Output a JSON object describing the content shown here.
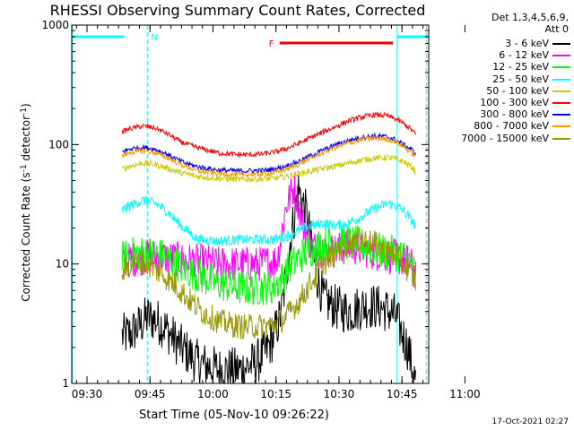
{
  "chart_data": {
    "type": "line",
    "title": "RHESSI Observing Summary Count Rates, Corrected",
    "xlabel": "Start Time (05-Nov-10 09:26:22)",
    "ylabel": "Corrected Count Rate (s",
    "ylabel_sup1": "-1",
    "ylabel_mid": " detector",
    "ylabel_sup2": "-1",
    "ylabel_end": ")",
    "y_scale": "log",
    "ylim": [
      1,
      1000
    ],
    "y_ticks": [
      "1",
      "10",
      "100",
      "1000"
    ],
    "xlim_minutes": [
      0,
      85
    ],
    "x_ticks": [
      {
        "label": "09:30",
        "minute": 3.63
      },
      {
        "label": "09:45",
        "minute": 18.63
      },
      {
        "label": "10:00",
        "minute": 33.63
      },
      {
        "label": "10:15",
        "minute": 48.63
      },
      {
        "label": "10:30",
        "minute": 63.63
      },
      {
        "label": "10:45",
        "minute": 78.63
      },
      {
        "label": "11:00",
        "minute": 93.63
      }
    ],
    "detectors": "Det 1,3,4,5,6,9,",
    "attenuator": "Att 0",
    "timestamp": "17-Oct-2021 02:27",
    "annotations": [
      {
        "label": "N",
        "color": "#00ffff",
        "x_minute": 18.0
      },
      {
        "label": "F",
        "color": "#ee0000",
        "x_start": 49.5,
        "x_end": 76.5
      }
    ],
    "series": [
      {
        "name": "3 - 6 keV",
        "color": "#000000",
        "x": [
          12,
          14,
          16,
          18,
          20,
          22,
          25,
          30,
          35,
          40,
          44,
          46,
          48,
          50,
          52,
          54,
          56,
          58,
          60,
          63,
          66,
          70,
          74,
          77,
          78,
          80,
          82
        ],
        "y": [
          2.5,
          2.6,
          3.0,
          3.6,
          3.4,
          3.0,
          2.2,
          1.5,
          1.3,
          1.3,
          1.5,
          1.8,
          2.4,
          4.0,
          15,
          42,
          25,
          9,
          5.0,
          4.3,
          4.0,
          4.5,
          4.3,
          3.7,
          3.0,
          2.0,
          1.0
        ]
      },
      {
        "name": "6 - 12 keV",
        "color": "#ff00ff",
        "x": [
          12,
          15,
          18,
          21,
          25,
          30,
          35,
          40,
          45,
          48,
          49,
          51,
          53,
          55,
          57,
          60,
          63,
          66,
          70,
          74,
          77,
          80,
          82
        ],
        "y": [
          10.5,
          11,
          11.5,
          11.5,
          11,
          10.5,
          10,
          10,
          10,
          10.5,
          11,
          30,
          45,
          22,
          14,
          13,
          13,
          14,
          13,
          12,
          11.5,
          10.5,
          8.5
        ]
      },
      {
        "name": "12 - 25 keV",
        "color": "#00ff00",
        "x": [
          12,
          14,
          18,
          22,
          26,
          30,
          35,
          40,
          45,
          48,
          50,
          52,
          55,
          58,
          61,
          64,
          67,
          70,
          73,
          76,
          78,
          80,
          82
        ],
        "y": [
          11,
          12,
          12.5,
          11.5,
          9.5,
          8,
          6.8,
          6.3,
          6.3,
          6.5,
          7.5,
          9.5,
          12,
          14,
          15,
          15.5,
          15,
          14,
          13,
          12.5,
          12,
          11,
          8
        ]
      },
      {
        "name": "25 - 50 keV",
        "color": "#00ffff",
        "x": [
          12,
          14,
          17,
          20,
          23,
          26,
          30,
          35,
          40,
          45,
          48,
          51,
          54,
          57,
          60,
          63,
          66,
          69,
          72,
          75,
          77,
          79,
          81,
          82
        ],
        "y": [
          28,
          31,
          34,
          32,
          27,
          21,
          16,
          15.5,
          16,
          16,
          16,
          17,
          19,
          21,
          22,
          21,
          22,
          25,
          29,
          32,
          31,
          28,
          23,
          20
        ]
      },
      {
        "name": "50 - 100 keV",
        "color": "#cccc00",
        "x": [
          12,
          14,
          17,
          20,
          23,
          26,
          30,
          35,
          40,
          45,
          48,
          51,
          54,
          57,
          60,
          63,
          66,
          69,
          72,
          75,
          77,
          79,
          81,
          82
        ],
        "y": [
          62,
          66,
          70,
          68,
          63,
          58,
          54,
          52,
          51,
          51.5,
          52,
          54,
          57,
          60,
          63,
          66,
          70,
          74,
          77,
          78,
          76,
          72,
          65,
          58
        ]
      },
      {
        "name": "100 - 300 keV",
        "color": "#ff0000",
        "x": [
          12,
          14,
          17,
          20,
          23,
          26,
          30,
          35,
          40,
          45,
          48,
          51,
          54,
          57,
          60,
          63,
          66,
          69,
          72,
          75,
          77,
          79,
          81,
          82
        ],
        "y": [
          128,
          136,
          143,
          137,
          122,
          105,
          94,
          85,
          82,
          83,
          86,
          92,
          102,
          115,
          128,
          142,
          158,
          170,
          177,
          174,
          165,
          150,
          132,
          120
        ]
      },
      {
        "name": "300 - 800 keV",
        "color": "#0000ff",
        "x": [
          12,
          14,
          17,
          20,
          23,
          26,
          30,
          35,
          40,
          45,
          48,
          51,
          54,
          57,
          60,
          63,
          66,
          69,
          72,
          75,
          77,
          79,
          81,
          82
        ],
        "y": [
          87,
          92,
          95,
          91,
          82,
          72,
          65,
          61,
          60,
          60.5,
          62,
          66,
          72,
          81,
          90,
          100,
          108,
          115,
          118,
          116,
          110,
          100,
          90,
          83
        ]
      },
      {
        "name": "800 - 7000 keV",
        "color": "#ff9900",
        "x": [
          12,
          14,
          17,
          20,
          23,
          26,
          30,
          35,
          40,
          45,
          48,
          51,
          54,
          57,
          60,
          63,
          66,
          69,
          72,
          75,
          77,
          79,
          81,
          82
        ],
        "y": [
          80,
          86,
          89,
          85,
          77,
          68,
          60,
          57,
          56,
          56.5,
          58,
          62,
          68,
          77,
          86,
          95,
          103,
          110,
          113,
          111,
          106,
          96,
          85,
          78
        ]
      },
      {
        "name": "7000 - 15000 keV",
        "color": "#999900",
        "x": [
          12,
          14,
          16,
          19,
          22,
          25,
          28,
          31,
          35,
          40,
          45,
          48,
          51,
          54,
          57,
          60,
          63,
          66,
          69,
          72,
          75,
          78,
          80,
          82
        ],
        "y": [
          8.5,
          10,
          10.5,
          9.5,
          8,
          6.5,
          5,
          4,
          3.3,
          3.0,
          3.0,
          3.1,
          3.6,
          4.8,
          7,
          10,
          13,
          15,
          16,
          15,
          13,
          11,
          9,
          7
        ]
      }
    ]
  }
}
